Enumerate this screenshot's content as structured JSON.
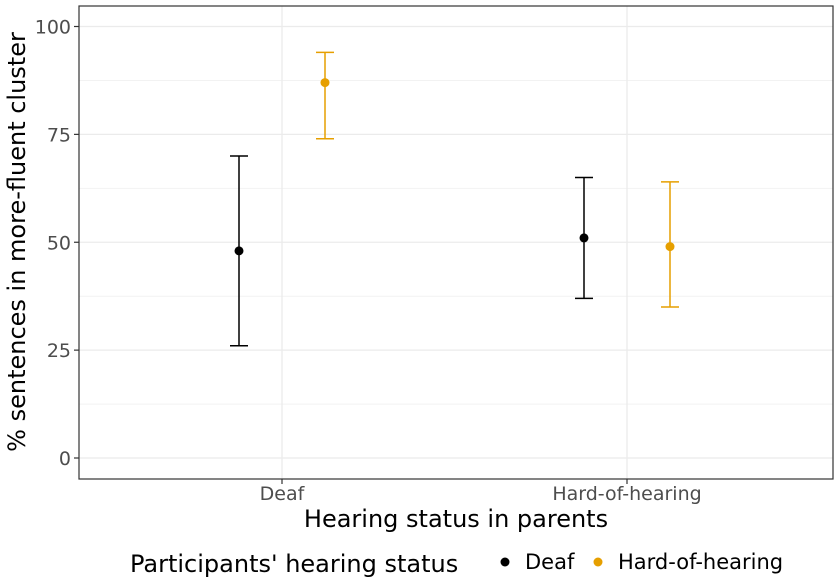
{
  "chart_data": {
    "type": "errorbar",
    "categories": [
      "Deaf",
      "Hard-of-hearing"
    ],
    "xlabel": "Hearing status in parents",
    "ylabel": "% sentences in more-fluent cluster",
    "ylim": [
      0,
      105
    ],
    "yticks": [
      0,
      25,
      50,
      75,
      100
    ],
    "yticks_labels": [
      "0",
      "25",
      "50",
      "75",
      "100"
    ],
    "grid": true,
    "legend": {
      "title": "Participants' hearing status",
      "position": "bottom"
    },
    "series": [
      {
        "name": "Deaf",
        "color": "#000000",
        "values": [
          48,
          51
        ],
        "lower": [
          26,
          37
        ],
        "upper": [
          70,
          65
        ]
      },
      {
        "name": "Hard-of-hearing",
        "color": "#E69F00",
        "values": [
          87,
          49
        ],
        "lower": [
          74,
          35
        ],
        "upper": [
          94,
          64
        ]
      }
    ]
  }
}
